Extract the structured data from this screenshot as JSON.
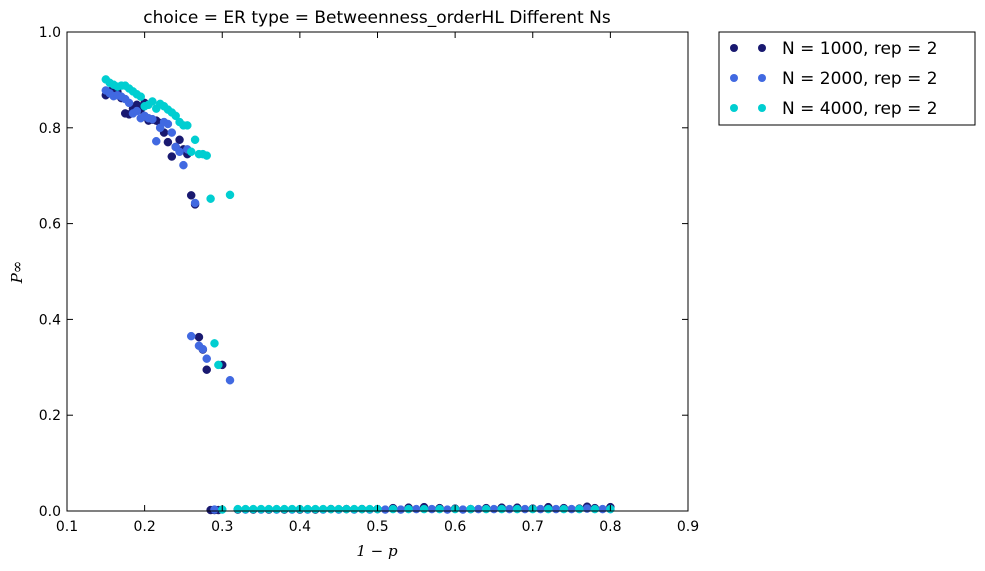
{
  "chart_data": {
    "type": "scatter",
    "title": "choice = ER type = Betweenness_orderHL Different Ns",
    "xlabel": "1 − p",
    "ylabel": "P∞",
    "xlim": [
      0.1,
      0.9
    ],
    "ylim": [
      0.0,
      1.0
    ],
    "xticks": [
      "0.1",
      "0.2",
      "0.3",
      "0.4",
      "0.5",
      "0.6",
      "0.7",
      "0.8",
      "0.9"
    ],
    "yticks": [
      "0.0",
      "0.2",
      "0.4",
      "0.6",
      "0.8",
      "1.0"
    ],
    "grid": false,
    "legend_position": "outside-top-right",
    "series": [
      {
        "name": "N = 1000, rep = 2",
        "color": "#191970",
        "x": [
          0.15,
          0.155,
          0.16,
          0.165,
          0.17,
          0.175,
          0.18,
          0.185,
          0.19,
          0.195,
          0.2,
          0.205,
          0.21,
          0.215,
          0.22,
          0.225,
          0.23,
          0.235,
          0.24,
          0.245,
          0.25,
          0.255,
          0.26,
          0.265,
          0.27,
          0.275,
          0.28,
          0.285,
          0.29,
          0.295,
          0.3,
          0.32,
          0.34,
          0.36,
          0.38,
          0.4,
          0.42,
          0.44,
          0.46,
          0.48,
          0.5,
          0.52,
          0.54,
          0.56,
          0.58,
          0.6,
          0.62,
          0.64,
          0.66,
          0.68,
          0.7,
          0.72,
          0.74,
          0.76,
          0.77,
          0.78,
          0.8
        ],
        "y": [
          0.868,
          0.876,
          0.882,
          0.875,
          0.862,
          0.83,
          0.828,
          0.84,
          0.848,
          0.838,
          0.852,
          0.815,
          0.817,
          0.815,
          0.81,
          0.79,
          0.77,
          0.74,
          0.76,
          0.775,
          0.755,
          0.745,
          0.659,
          0.64,
          0.363,
          0.337,
          0.295,
          0.002,
          0.002,
          0.002,
          0.305,
          0.003,
          0.003,
          0.003,
          0.003,
          0.003,
          0.003,
          0.004,
          0.004,
          0.004,
          0.004,
          0.006,
          0.007,
          0.008,
          0.006,
          0.005,
          0.004,
          0.006,
          0.007,
          0.007,
          0.005,
          0.008,
          0.006,
          0.005,
          0.009,
          0.006,
          0.008
        ]
      },
      {
        "name": "N = 2000, rep = 2",
        "color": "#4169e1",
        "x": [
          0.15,
          0.155,
          0.16,
          0.165,
          0.17,
          0.175,
          0.18,
          0.185,
          0.19,
          0.195,
          0.2,
          0.205,
          0.21,
          0.215,
          0.22,
          0.225,
          0.23,
          0.235,
          0.24,
          0.245,
          0.25,
          0.255,
          0.26,
          0.265,
          0.27,
          0.275,
          0.28,
          0.29,
          0.31,
          0.33,
          0.35,
          0.37,
          0.39,
          0.41,
          0.43,
          0.45,
          0.47,
          0.49,
          0.51,
          0.53,
          0.55,
          0.57,
          0.59,
          0.61,
          0.63,
          0.65,
          0.67,
          0.69,
          0.71,
          0.73,
          0.75,
          0.77,
          0.79,
          0.8
        ],
        "y": [
          0.878,
          0.872,
          0.866,
          0.868,
          0.865,
          0.86,
          0.852,
          0.83,
          0.835,
          0.82,
          0.825,
          0.82,
          0.818,
          0.772,
          0.8,
          0.812,
          0.808,
          0.79,
          0.76,
          0.75,
          0.722,
          0.755,
          0.365,
          0.643,
          0.345,
          0.338,
          0.318,
          0.003,
          0.273,
          0.003,
          0.003,
          0.003,
          0.003,
          0.003,
          0.003,
          0.003,
          0.003,
          0.003,
          0.003,
          0.003,
          0.004,
          0.004,
          0.003,
          0.003,
          0.004,
          0.004,
          0.004,
          0.004,
          0.004,
          0.004,
          0.004,
          0.005,
          0.004,
          0.004
        ]
      },
      {
        "name": "N = 4000, rep = 2",
        "color": "#00ced1",
        "x": [
          0.15,
          0.155,
          0.16,
          0.165,
          0.17,
          0.175,
          0.18,
          0.185,
          0.19,
          0.195,
          0.2,
          0.205,
          0.21,
          0.215,
          0.22,
          0.225,
          0.23,
          0.235,
          0.24,
          0.245,
          0.25,
          0.255,
          0.26,
          0.265,
          0.27,
          0.275,
          0.28,
          0.285,
          0.29,
          0.295,
          0.3,
          0.31,
          0.32,
          0.33,
          0.34,
          0.35,
          0.36,
          0.37,
          0.38,
          0.39,
          0.4,
          0.41,
          0.42,
          0.43,
          0.44,
          0.45,
          0.46,
          0.47,
          0.48,
          0.49,
          0.5,
          0.52,
          0.54,
          0.56,
          0.58,
          0.6,
          0.62,
          0.64,
          0.66,
          0.68,
          0.7,
          0.72,
          0.74,
          0.76,
          0.78,
          0.8
        ],
        "y": [
          0.901,
          0.894,
          0.89,
          0.886,
          0.888,
          0.888,
          0.882,
          0.876,
          0.87,
          0.865,
          0.845,
          0.848,
          0.855,
          0.84,
          0.85,
          0.845,
          0.838,
          0.832,
          0.825,
          0.812,
          0.805,
          0.805,
          0.75,
          0.775,
          0.745,
          0.745,
          0.742,
          0.652,
          0.35,
          0.305,
          0.003,
          0.66,
          0.004,
          0.004,
          0.004,
          0.004,
          0.004,
          0.004,
          0.004,
          0.004,
          0.004,
          0.004,
          0.004,
          0.004,
          0.004,
          0.004,
          0.004,
          0.004,
          0.004,
          0.004,
          0.004,
          0.004,
          0.004,
          0.004,
          0.004,
          0.004,
          0.004,
          0.004,
          0.004,
          0.004,
          0.004,
          0.004,
          0.004,
          0.004,
          0.004,
          0.004
        ]
      }
    ]
  }
}
